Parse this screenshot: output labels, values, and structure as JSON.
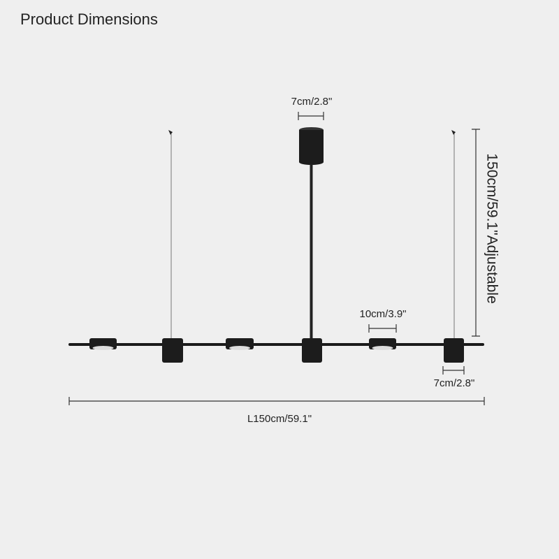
{
  "header": {
    "title": "Product Dimensions"
  },
  "dimensions": {
    "canopy_width": "7cm/2.8\"",
    "shade_width": "10cm/3.9\"",
    "cylinder_width": "7cm/2.8\"",
    "drop_height": "150cm/59.1\"Adjustable",
    "length": "L150cm/59.1\""
  }
}
